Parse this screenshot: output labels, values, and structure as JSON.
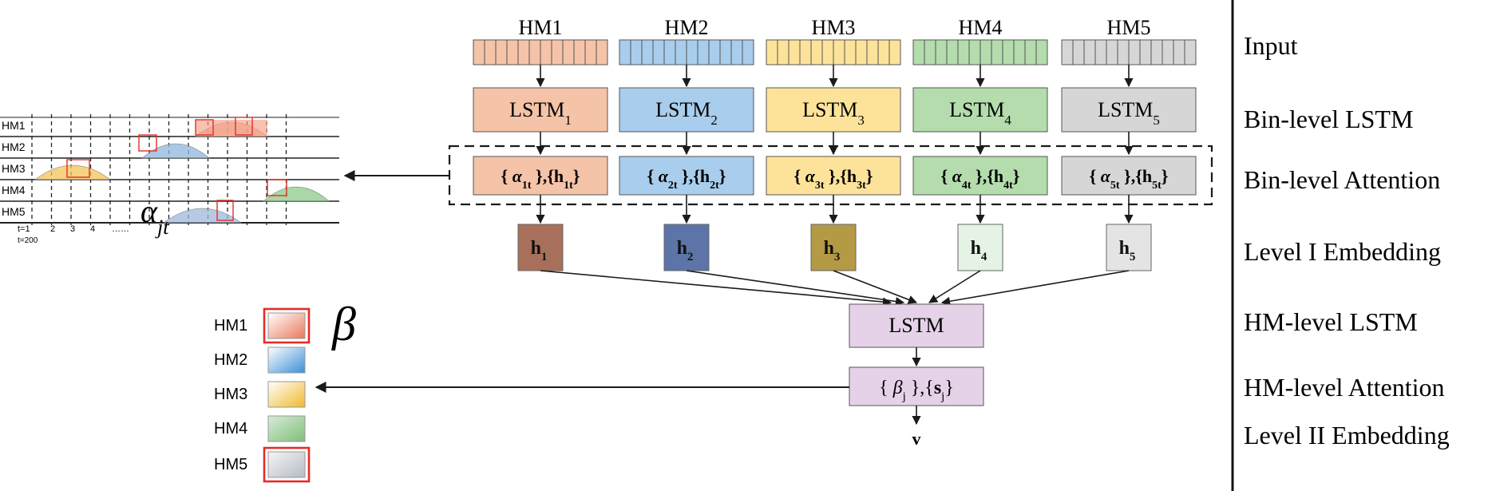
{
  "colors": {
    "hm1": "#f5c3a8",
    "hm2": "#a9cdec",
    "hm3": "#fde39a",
    "hm4": "#b4dcad",
    "hm5": "#d6d6d6",
    "hm_lstm": "#e6d2e8",
    "h1": "#a8705a",
    "h2": "#5c74a8",
    "h3": "#b49a45",
    "h4": "#e4f3e4",
    "h5": "#e4e4e4",
    "highlight": "#e32d27"
  },
  "columns": [
    {
      "hm": "HM1",
      "lstm": "LSTM",
      "lstm_sub": "1",
      "att_alpha_sub": "1t",
      "att_h_sub": "1t",
      "emb_sub": "1"
    },
    {
      "hm": "HM2",
      "lstm": "LSTM",
      "lstm_sub": "2",
      "att_alpha_sub": "2t",
      "att_h_sub": "2t",
      "emb_sub": "2"
    },
    {
      "hm": "HM3",
      "lstm": "LSTM",
      "lstm_sub": "3",
      "att_alpha_sub": "3t",
      "att_h_sub": "3t",
      "emb_sub": "3"
    },
    {
      "hm": "HM4",
      "lstm": "LSTM",
      "lstm_sub": "4",
      "att_alpha_sub": "4t",
      "att_h_sub": "4t",
      "emb_sub": "4"
    },
    {
      "hm": "HM5",
      "lstm": "LSTM",
      "lstm_sub": "5",
      "att_alpha_sub": "5t",
      "att_h_sub": "5t",
      "emb_sub": "5"
    }
  ],
  "embedding_letter": "h",
  "hm_level": {
    "lstm": "LSTM",
    "beta": "β",
    "beta_sub": "j",
    "s": "s",
    "s_sub": "j",
    "output": "v"
  },
  "alpha_plot": {
    "rows": [
      "HM1",
      "HM2",
      "HM3",
      "HM4",
      "HM5"
    ],
    "ticks": [
      "t=1",
      "2",
      "3",
      "4",
      "……"
    ],
    "tick_end": "t=200",
    "symbol": "α",
    "symbol_sub": "jt"
  },
  "beta_plot": {
    "rows": [
      "HM1",
      "HM2",
      "HM3",
      "HM4",
      "HM5"
    ],
    "symbol": "β"
  },
  "layer_labels": [
    "Input",
    "Bin-level LSTM",
    "Bin-level Attention",
    "Level I Embedding",
    "HM-level LSTM",
    "HM-level Attention",
    "Level II Embedding"
  ]
}
